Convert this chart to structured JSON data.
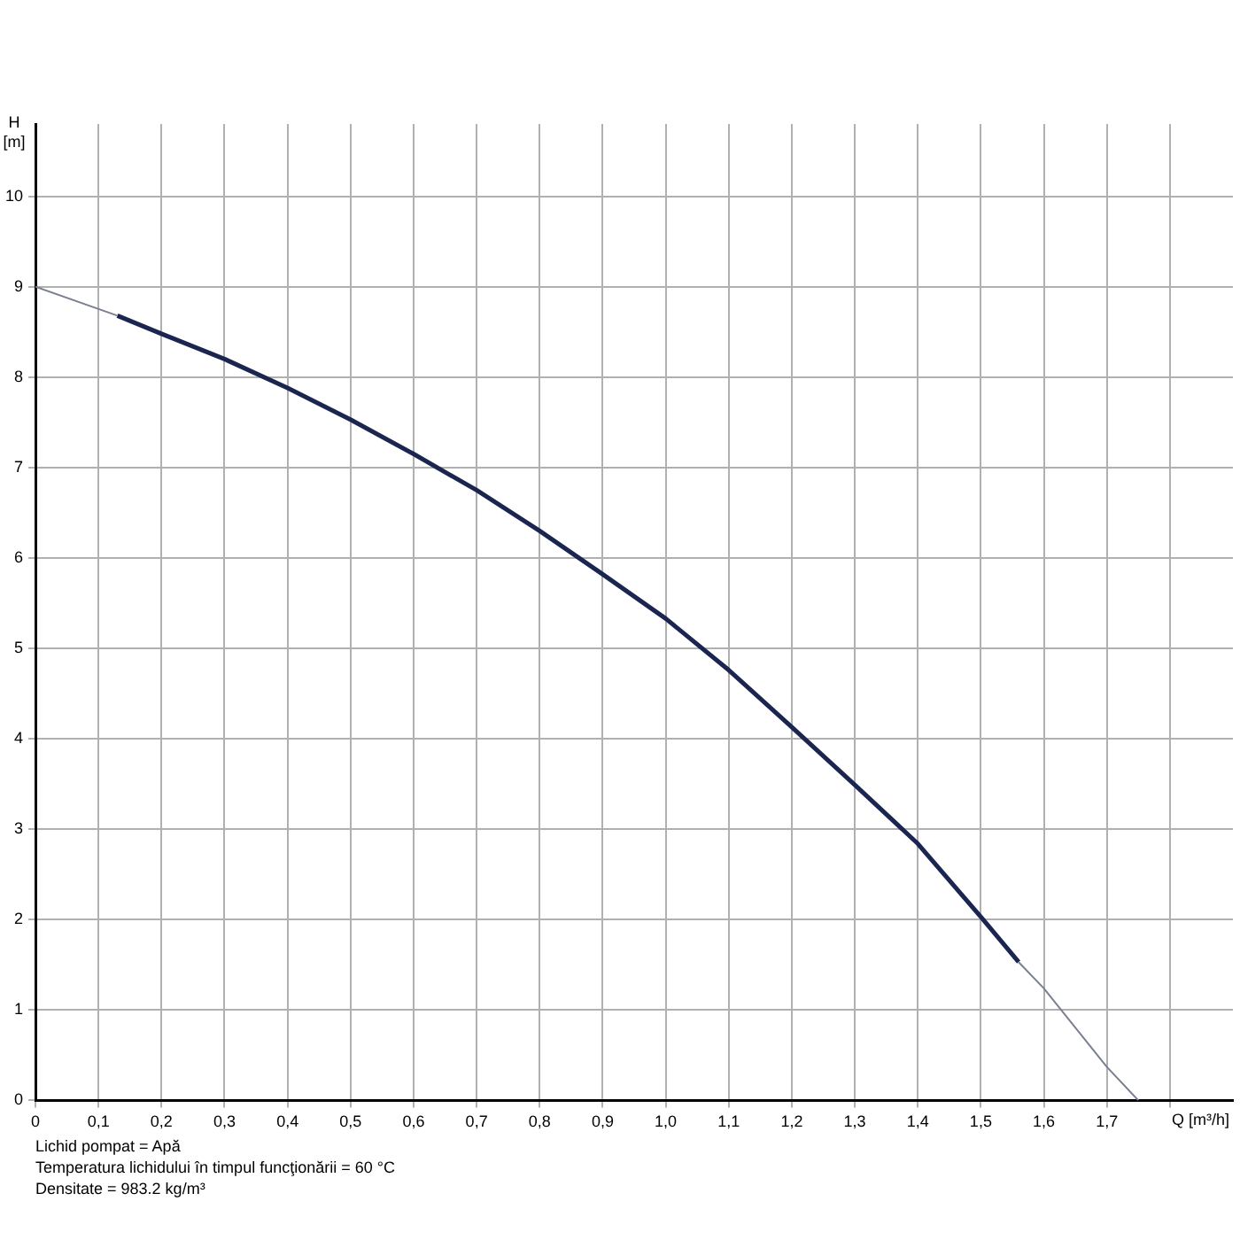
{
  "chart_data": {
    "type": "line",
    "xlabel": "Q [m³/h]",
    "ylabel": "H [m]",
    "xlim": [
      0,
      1.9
    ],
    "xticks": [
      0,
      {
        "value": 0.1,
        "label": "0,1"
      },
      {
        "value": 0.2,
        "label": "0,2"
      },
      {
        "value": 0.3,
        "label": "0,3"
      },
      {
        "value": 0.4,
        "label": "0,4"
      },
      {
        "value": 0.5,
        "label": "0,5"
      },
      {
        "value": 0.6,
        "label": "0,6"
      },
      {
        "value": 0.7,
        "label": "0,7"
      },
      {
        "value": 0.8,
        "label": "0,8"
      },
      {
        "value": 0.9,
        "label": "0,9"
      },
      {
        "value": 1,
        "label": "1,0"
      },
      {
        "value": 1.1,
        "label": "1,1"
      },
      {
        "value": 1.2,
        "label": "1,2"
      },
      {
        "value": 1.3,
        "label": "1,3"
      },
      {
        "value": 1.4,
        "label": "1,4"
      },
      {
        "value": 1.5,
        "label": "1,5"
      },
      {
        "value": 1.6,
        "label": "1,6"
      },
      {
        "value": 1.7,
        "label": "1,7"
      },
      {
        "value": 1.8,
        "label": null
      }
    ],
    "ylim": [
      0,
      10.8
    ],
    "yticks": [
      0,
      1,
      2,
      3,
      4,
      5,
      6,
      7,
      8,
      9,
      10
    ],
    "grid": true,
    "legend": false,
    "marker": "none",
    "line_style": "solid",
    "series": [
      {
        "color": "#7a8090",
        "x": [
          0,
          0.13,
          0.14,
          1.56,
          1.6,
          1.7,
          1.75
        ],
        "values": [
          9.0,
          8.68,
          null,
          1.53,
          1.24,
          0.37,
          0
        ]
      },
      {
        "color": "#1a2550",
        "x": [
          0.13,
          0.2,
          0.3,
          0.4,
          0.5,
          0.6,
          0.7,
          0.8,
          0.9,
          1.0,
          1.1,
          1.2,
          1.3,
          1.4,
          1.5,
          1.56
        ],
        "values": [
          8.68,
          8.48,
          8.2,
          7.88,
          7.53,
          7.15,
          6.75,
          6.3,
          5.82,
          5.33,
          4.76,
          4.13,
          3.49,
          2.84,
          2.03,
          1.53
        ]
      }
    ],
    "annotations": [
      "Lichid pompat = Apă",
      "Temperatura lichidului în timpul funcţionării = 60 °C",
      "Densitate = 983.2 kg/m³"
    ]
  }
}
